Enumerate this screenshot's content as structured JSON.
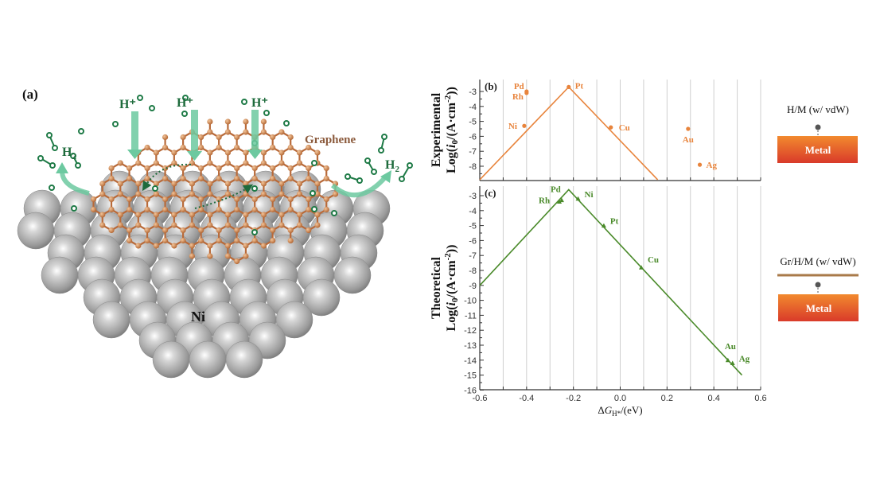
{
  "illustration": {
    "panel_label": "(a)",
    "proton_labels": [
      "H⁺",
      "H⁺",
      "H⁺"
    ],
    "h2_label_left": "H",
    "h2_label_right": "H",
    "h2_subscript": "2",
    "graphene_label": "Graphene",
    "metal_label": "Ni",
    "colors": {
      "hydrogen": "#1e7a46",
      "arrow": "#6cc9a0",
      "graphene": "#b86a3a",
      "metal": "#a9a9a9"
    }
  },
  "schematics": [
    {
      "title": "H/M (w/ vdW)",
      "box_label": "Metal",
      "has_graphene": false
    },
    {
      "title": "Gr/H/M (w/ vdW)",
      "box_label": "Metal",
      "has_graphene": true
    }
  ],
  "chart_data": [
    {
      "type": "scatter",
      "panel_label": "(b)",
      "ylabel_top": "Experimental",
      "ylabel": {
        "pre": "Log(",
        "i": "i",
        "sub": "0",
        "mid": "/(A·cm",
        "sup": "-2",
        "post": "))"
      },
      "color": "#e8843c",
      "xlim": [
        -0.6,
        0.6
      ],
      "ylim": [
        -8.9,
        -2.3
      ],
      "yticks": [
        -3,
        -4,
        -5,
        -6,
        -7,
        -8
      ],
      "grid": "vertical",
      "points": [
        {
          "label": "Pd",
          "x": -0.4,
          "y": -3.0
        },
        {
          "label": "Rh",
          "x": -0.4,
          "y": -3.1
        },
        {
          "label": "Ni",
          "x": -0.41,
          "y": -5.3
        },
        {
          "label": "Pt",
          "x": -0.22,
          "y": -2.7
        },
        {
          "label": "Cu",
          "x": -0.04,
          "y": -5.4
        },
        {
          "label": "Au",
          "x": 0.29,
          "y": -5.5
        },
        {
          "label": "Ag",
          "x": 0.34,
          "y": -7.9
        }
      ],
      "volcano": [
        {
          "x": -0.6,
          "y": -8.9
        },
        {
          "x": -0.22,
          "y": -2.7
        },
        {
          "x": 0.16,
          "y": -8.9
        }
      ]
    },
    {
      "type": "line",
      "panel_label": "(c)",
      "ylabel_top": "Theoretical",
      "ylabel": {
        "pre": "Log(",
        "i": "i",
        "sub": "0",
        "mid": "/(A·cm",
        "sup": "-2",
        "post": "))"
      },
      "xlabel": {
        "pre": "Δ",
        "g": "G",
        "sub": "H*",
        "post": "/(eV)"
      },
      "color": "#4a8a2a",
      "xlim": [
        -0.6,
        0.6
      ],
      "ylim": [
        -16,
        -2.3
      ],
      "xticks": [
        "-0.6",
        "-0.4",
        "-0.2",
        "0.0",
        "0.2",
        "0.4",
        "0.6"
      ],
      "yticks": [
        -3,
        -4,
        -5,
        -6,
        -7,
        -8,
        -9,
        -10,
        -11,
        -12,
        -13,
        -14,
        -15,
        -16
      ],
      "grid": "vertical",
      "points": [
        {
          "label": "Rh",
          "x": -0.26,
          "y": -3.4
        },
        {
          "label": "Pd",
          "x": -0.25,
          "y": -3.3
        },
        {
          "label": "Ni",
          "x": -0.18,
          "y": -3.2
        },
        {
          "label": "Pt",
          "x": -0.07,
          "y": -5.0
        },
        {
          "label": "Cu",
          "x": 0.09,
          "y": -7.8
        },
        {
          "label": "Au",
          "x": 0.46,
          "y": -14.0
        },
        {
          "label": "Ag",
          "x": 0.48,
          "y": -14.2
        }
      ],
      "volcano": [
        {
          "x": -0.6,
          "y": -9.0
        },
        {
          "x": -0.22,
          "y": -2.6
        },
        {
          "x": 0.52,
          "y": -15.0
        }
      ]
    }
  ]
}
